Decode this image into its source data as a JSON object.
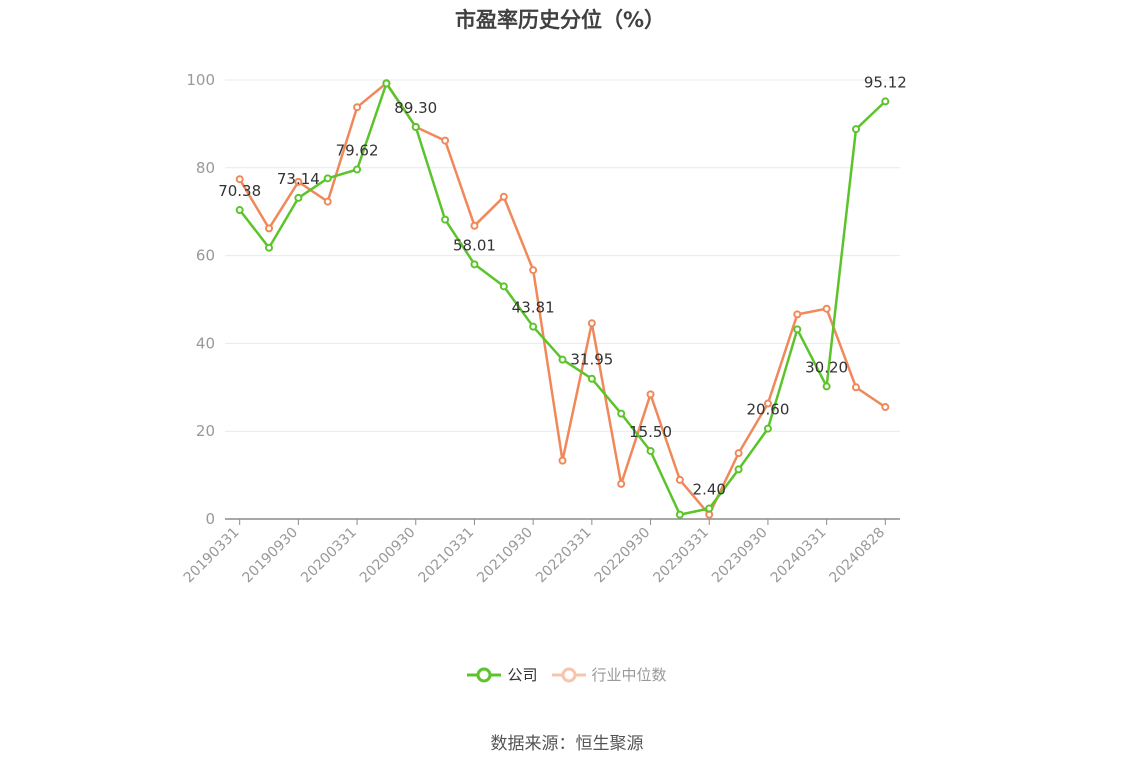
{
  "chart_data": {
    "type": "line",
    "title": "市盈率历史分位（%）",
    "x_tick_labels": [
      "20190331",
      "20190930",
      "20200331",
      "20200930",
      "20210331",
      "20210930",
      "20220331",
      "20220930",
      "20230331",
      "20230930",
      "20240331",
      "20240828"
    ],
    "y_ticks": [
      "0",
      "20",
      "40",
      "60",
      "80",
      "100"
    ],
    "ylim": [
      0,
      100
    ],
    "grid": true,
    "legend_position": "bottom-center",
    "series": [
      {
        "name": "公司",
        "color": "#5cc42b",
        "values": [
          70.38,
          61.8,
          73.14,
          77.6,
          79.62,
          99.2,
          89.3,
          68.2,
          58.01,
          53.0,
          43.81,
          36.3,
          31.95,
          24.0,
          15.5,
          1.0,
          2.4,
          11.3,
          20.6,
          43.2,
          30.2,
          88.8,
          95.12
        ],
        "labels": [
          "70.38",
          "",
          "73.14",
          "",
          "79.62",
          "",
          "89.30",
          "",
          "58.01",
          "",
          "43.81",
          "",
          "31.95",
          "",
          "15.50",
          "",
          "2.40",
          "",
          "20.60",
          "",
          "30.20",
          "",
          "95.12"
        ]
      },
      {
        "name": "行业中位数",
        "color": "#f0885a",
        "values": [
          77.4,
          66.2,
          76.8,
          72.3,
          93.8,
          99.3,
          89.3,
          86.2,
          66.8,
          73.4,
          56.7,
          13.3,
          44.6,
          8.0,
          28.4,
          8.9,
          1.0,
          15.0,
          26.3,
          46.6,
          47.9,
          30.0,
          25.5
        ],
        "labels": []
      }
    ]
  },
  "legend": {
    "company_label": "公司",
    "industry_label": "行业中位数"
  },
  "source_text": "数据来源：恒生聚源"
}
